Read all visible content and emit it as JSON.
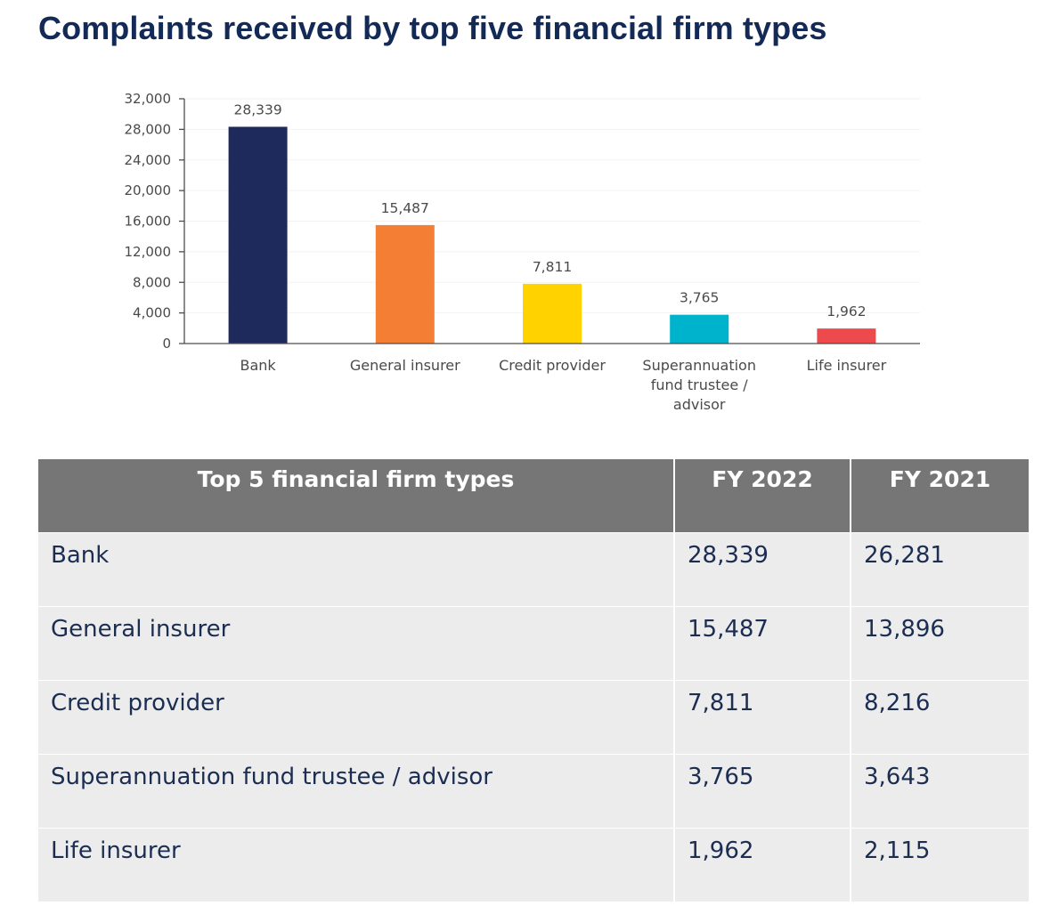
{
  "page_title": "Complaints received by top five financial firm types",
  "chart_data": {
    "type": "bar",
    "title": "",
    "xlabel": "",
    "ylabel": "",
    "ylim": [
      0,
      32000
    ],
    "yticks": [
      0,
      4000,
      8000,
      12000,
      16000,
      20000,
      24000,
      28000,
      32000
    ],
    "ytick_labels": [
      "0",
      "4,000",
      "8,000",
      "12,000",
      "16,000",
      "20,000",
      "24,000",
      "28,000",
      "32,000"
    ],
    "categories": [
      [
        "Bank"
      ],
      [
        "General insurer"
      ],
      [
        "Credit provider"
      ],
      [
        "Superannuation",
        "fund trustee /",
        "advisor"
      ],
      [
        "Life insurer"
      ]
    ],
    "values": [
      28339,
      15487,
      7811,
      3765,
      1962
    ],
    "value_labels": [
      "28,339",
      "15,487",
      "7,811",
      "3,765",
      "1,962"
    ],
    "colors": [
      "#1f2a5c",
      "#f47f34",
      "#ffd200",
      "#00b3cc",
      "#ec4a4c"
    ],
    "grid": true,
    "legend": "none"
  },
  "table": {
    "headers": [
      "Top 5 financial firm types",
      "FY 2022",
      "FY 2021"
    ],
    "rows": [
      [
        "Bank",
        "28,339",
        "26,281"
      ],
      [
        "General insurer",
        "15,487",
        "13,896"
      ],
      [
        "Credit provider",
        "7,811",
        "8,216"
      ],
      [
        "Superannuation fund trustee / advisor",
        "3,765",
        "3,643"
      ],
      [
        "Life insurer",
        "1,962",
        "2,115"
      ]
    ]
  }
}
